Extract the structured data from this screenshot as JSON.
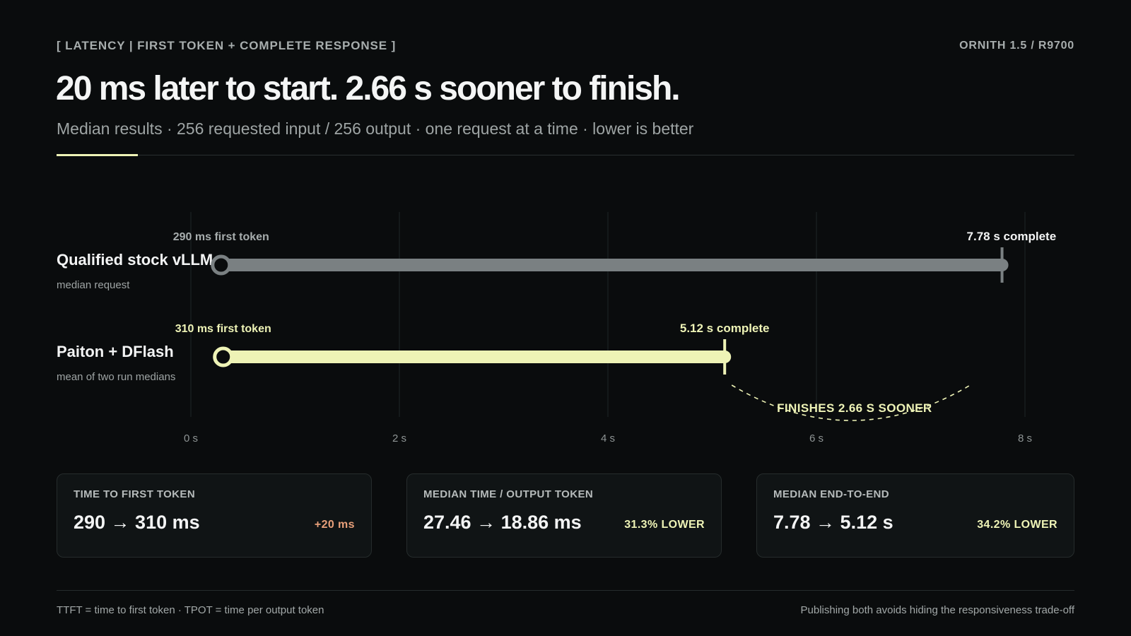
{
  "header": {
    "eyebrow": "[ LATENCY | FIRST TOKEN + COMPLETE RESPONSE ]",
    "brand": "ORNITH 1.5 / R9700",
    "headline": "20 ms later to start. 2.66 s sooner to finish.",
    "subline": "Median results · 256 requested input / 256 output · one request at a time · lower is better"
  },
  "colors": {
    "background": "#0a0c0d",
    "baseline_bar": "#7a8082",
    "accent": "#eef3b6",
    "delta_warn": "#e8a07a",
    "grid": "#1f2626"
  },
  "chart_data": {
    "type": "timeline-bar",
    "xunit": "s",
    "xlim": [
      0,
      8
    ],
    "xticks": [
      0,
      2,
      4,
      6,
      8
    ],
    "xtick_labels": [
      "0 s",
      "2 s",
      "4 s",
      "6 s",
      "8 s"
    ],
    "grid": true,
    "series": [
      {
        "name": "Qualified stock vLLM",
        "sub": "median request",
        "start": 0.29,
        "end": 7.78,
        "start_label": "290 ms first token",
        "end_label": "7.78 s complete",
        "color": "#7a8082"
      },
      {
        "name": "Paiton + DFlash",
        "sub": "mean of two run medians",
        "start": 0.31,
        "end": 5.12,
        "start_label": "310 ms first token",
        "end_label": "5.12 s complete",
        "color": "#eef3b6"
      }
    ],
    "annotation": {
      "from": 5.12,
      "to": 7.78,
      "label": "FINISHES 2.66 S SOONER"
    }
  },
  "cards": [
    {
      "label": "TIME TO FIRST TOKEN",
      "value": "290 → 310 ms",
      "delta": "+20 ms",
      "delta_color": "#e8a07a"
    },
    {
      "label": "MEDIAN TIME / OUTPUT TOKEN",
      "value": "27.46 → 18.86 ms",
      "delta": "31.3% LOWER",
      "delta_color": "#eef3b6"
    },
    {
      "label": "MEDIAN END-TO-END",
      "value": "7.78 → 5.12 s",
      "delta": "34.2% LOWER",
      "delta_color": "#eef3b6"
    }
  ],
  "footer": {
    "left": "TTFT = time to first token · TPOT = time per output token",
    "right": "Publishing both avoids hiding the responsiveness trade-off"
  }
}
